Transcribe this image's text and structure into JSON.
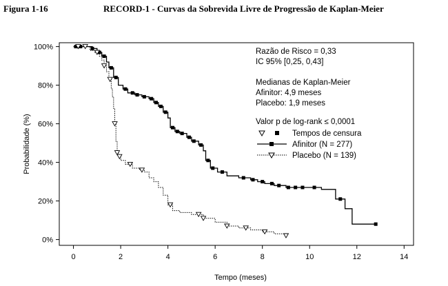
{
  "header": {
    "figure_number": "Figura 1-16",
    "title": "RECORD-1 - Curvas da Sobrevida Livre de Progressão de Kaplan-Meier"
  },
  "chart_data": {
    "type": "line",
    "subtype": "kaplan-meier step curves",
    "title": "RECORD-1 - Curvas da Sobrevida Livre de Progressão de Kaplan-Meier",
    "xlabel": "Tempo (meses)",
    "ylabel": "Probabilidade (%)",
    "xlim": [
      -0.6,
      14.4
    ],
    "ylim": [
      -3,
      102
    ],
    "x_ticks": [
      0,
      2,
      4,
      6,
      8,
      10,
      12,
      14
    ],
    "x_tick_labels": [
      "0",
      "2",
      "4",
      "6",
      "8",
      "10",
      "12",
      "14"
    ],
    "y_ticks": [
      0,
      20,
      40,
      60,
      80,
      100
    ],
    "y_tick_labels": [
      "0%",
      "20%",
      "40%",
      "60%",
      "80%",
      "100%"
    ],
    "grid": false,
    "legend_position": "top-right",
    "annotations": [
      "Razão de Risco = 0,33",
      "IC 95% [0,25, 0,43]",
      "Medianas de Kaplan-Meier",
      "Afinitor: 4,9 meses",
      "Placebo: 1,9 meses",
      "Valor p de log-rank ≤ 0,0001"
    ],
    "legend": {
      "censor_label": "Tempos de censura",
      "entries": [
        "Afinitor (N = 277)",
        "Placebo (N = 139)"
      ]
    },
    "series": [
      {
        "name": "Afinitor (N = 277)",
        "style": "solid",
        "marker": "filled-square",
        "color": "#000000",
        "points": [
          [
            0,
            100
          ],
          [
            0.6,
            100
          ],
          [
            0.8,
            99
          ],
          [
            1.0,
            97
          ],
          [
            1.2,
            95
          ],
          [
            1.4,
            92
          ],
          [
            1.5,
            89
          ],
          [
            1.7,
            84
          ],
          [
            1.9,
            80
          ],
          [
            2.1,
            78
          ],
          [
            2.3,
            76
          ],
          [
            2.6,
            75
          ],
          [
            2.9,
            74
          ],
          [
            3.2,
            73
          ],
          [
            3.4,
            71
          ],
          [
            3.6,
            69
          ],
          [
            3.8,
            66
          ],
          [
            4.0,
            63
          ],
          [
            4.1,
            58
          ],
          [
            4.3,
            56
          ],
          [
            4.5,
            55
          ],
          [
            4.8,
            53
          ],
          [
            5.0,
            51
          ],
          [
            5.3,
            49
          ],
          [
            5.5,
            46
          ],
          [
            5.6,
            41
          ],
          [
            5.8,
            37
          ],
          [
            6.1,
            35
          ],
          [
            6.5,
            33
          ],
          [
            7.0,
            32
          ],
          [
            7.5,
            31
          ],
          [
            7.8,
            30
          ],
          [
            8.1,
            29
          ],
          [
            8.5,
            28
          ],
          [
            9.0,
            27
          ],
          [
            9.8,
            27
          ],
          [
            10.5,
            26
          ],
          [
            11.1,
            21
          ],
          [
            11.5,
            16
          ],
          [
            11.8,
            8
          ],
          [
            12.8,
            8
          ]
        ],
        "censor_x": [
          0.1,
          0.3,
          0.8,
          1.1,
          1.3,
          1.6,
          1.8,
          2.2,
          2.5,
          2.7,
          3.0,
          3.3,
          3.5,
          3.7,
          3.9,
          4.2,
          4.4,
          4.6,
          4.9,
          5.1,
          5.4,
          5.7,
          5.9,
          6.3,
          7.2,
          7.6,
          8.0,
          8.4,
          8.7,
          9.1,
          9.4,
          9.7,
          10.2,
          11.3,
          12.8
        ]
      },
      {
        "name": "Placebo (N = 139)",
        "style": "dotted",
        "marker": "open-triangle-down",
        "color": "#000000",
        "points": [
          [
            0,
            100
          ],
          [
            0.4,
            100
          ],
          [
            0.7,
            98
          ],
          [
            0.9,
            97
          ],
          [
            1.1,
            95
          ],
          [
            1.2,
            93
          ],
          [
            1.3,
            90
          ],
          [
            1.4,
            87
          ],
          [
            1.5,
            83
          ],
          [
            1.6,
            78
          ],
          [
            1.65,
            74
          ],
          [
            1.7,
            68
          ],
          [
            1.75,
            60
          ],
          [
            1.8,
            51
          ],
          [
            1.85,
            45
          ],
          [
            1.9,
            43
          ],
          [
            2.0,
            41
          ],
          [
            2.2,
            39
          ],
          [
            2.5,
            37
          ],
          [
            2.8,
            36
          ],
          [
            3.0,
            35
          ],
          [
            3.2,
            32
          ],
          [
            3.4,
            30
          ],
          [
            3.6,
            27
          ],
          [
            3.8,
            23
          ],
          [
            4.0,
            18
          ],
          [
            4.2,
            15
          ],
          [
            4.5,
            14
          ],
          [
            5.0,
            13
          ],
          [
            5.5,
            11
          ],
          [
            6.0,
            9
          ],
          [
            6.5,
            7
          ],
          [
            7.0,
            6
          ],
          [
            7.5,
            5
          ],
          [
            8.0,
            4
          ],
          [
            8.5,
            3
          ],
          [
            9.0,
            2
          ]
        ],
        "censor_x": [
          0.2,
          0.5,
          1.0,
          1.3,
          1.55,
          1.75,
          1.85,
          1.95,
          2.4,
          2.9,
          4.1,
          5.3,
          5.5,
          6.5,
          7.3,
          8.1,
          9.0
        ]
      }
    ]
  }
}
